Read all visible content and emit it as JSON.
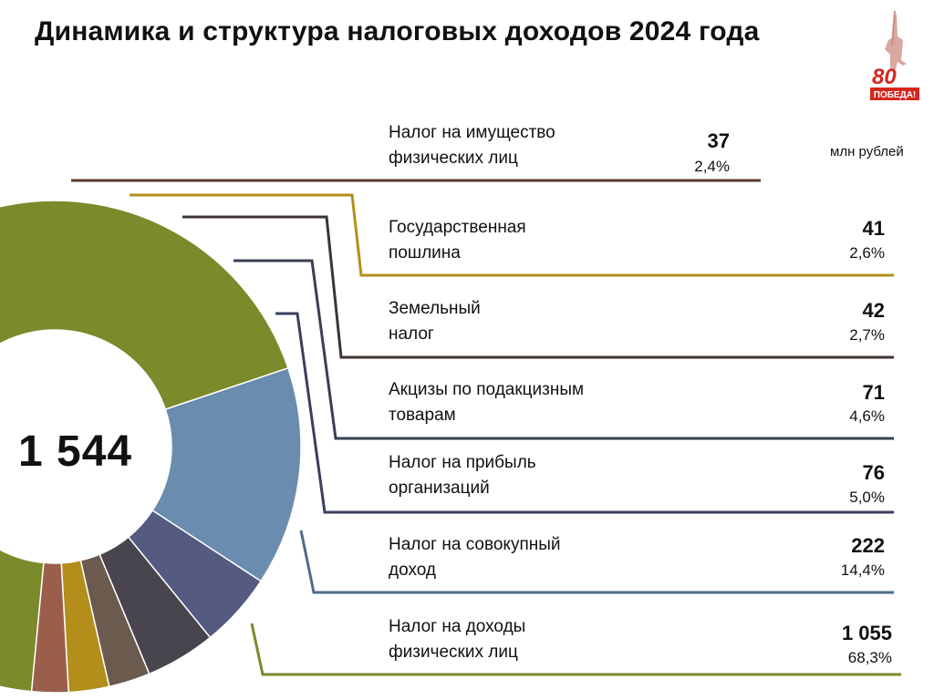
{
  "header": {
    "title": "Динамика и структура налоговых доходов 2024 года"
  },
  "logo": {
    "text_top": "80",
    "text_bottom": "ПОБЕДА!",
    "icon": "victory-80-logo"
  },
  "unit_label": "млн рублей",
  "chart_data": {
    "type": "pie",
    "total_label": "1 544",
    "total": 1544,
    "slices": [
      {
        "label": "Налог на доходы физических лиц",
        "value": 1055,
        "value_label": "1 055",
        "percent": "68,3%",
        "color": "#7b8a2a"
      },
      {
        "label": "Налог на совокупный доход",
        "value": 222,
        "value_label": "222",
        "percent": "14,4%",
        "color": "#6a8cae"
      },
      {
        "label": "Налог на прибыль организаций",
        "value": 76,
        "value_label": "76",
        "percent": "5,0%",
        "color": "#545a80"
      },
      {
        "label": "Акцизы по подакцизным товарам",
        "value": 71,
        "value_label": "71",
        "percent": "4,6%",
        "color": "#48454f"
      },
      {
        "label": "Земельный налог",
        "value": 42,
        "value_label": "42",
        "percent": "2,7%",
        "color": "#6b5a4e"
      },
      {
        "label": "Государственная пошлина",
        "value": 41,
        "value_label": "41",
        "percent": "2,6%",
        "color": "#b38e1b"
      },
      {
        "label": "Налог на имущество физических лиц",
        "value": 37,
        "value_label": "37",
        "percent": "2,4%",
        "color": "#9b5e4a"
      }
    ]
  },
  "legend": [
    {
      "name": "Налог на имущество\nфизических лиц",
      "value": "37",
      "percent": "2,4%"
    },
    {
      "name": "Государственная\nпошлина",
      "value": "41",
      "percent": "2,6%"
    },
    {
      "name": "Земельный\nналог",
      "value": "42",
      "percent": "2,7%"
    },
    {
      "name": "Акцизы по подакцизным\nтоварам",
      "value": "71",
      "percent": "4,6%"
    },
    {
      "name": "Налог на прибыль\nорганизаций",
      "value": "76",
      "percent": "5,0%"
    },
    {
      "name": "Налог на совокупный\nдоход",
      "value": "222",
      "percent": "14,4%"
    },
    {
      "name": "Налог на доходы\nфизических лиц",
      "value": "1 055",
      "percent": "68,3%"
    }
  ]
}
